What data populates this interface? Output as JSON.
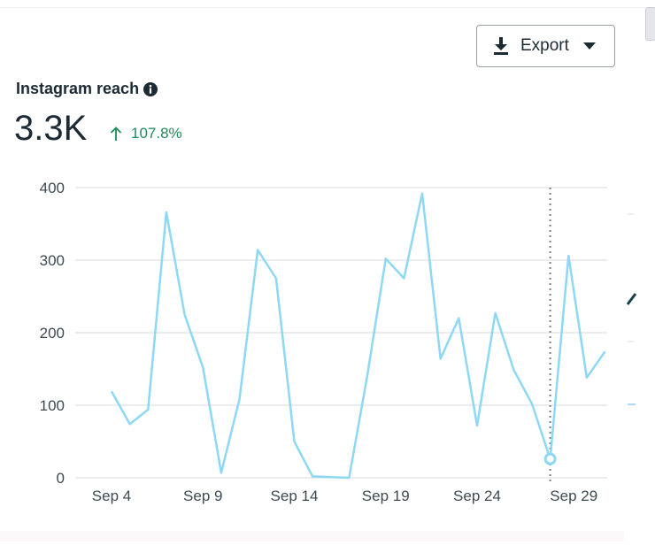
{
  "header": {
    "export_label": "Export",
    "export_icon": "download-icon",
    "dropdown_icon": "caret-down-icon"
  },
  "metric": {
    "title": "Instagram reach",
    "info_icon": "info-icon",
    "value": "3.3K",
    "change": "107.8%",
    "change_icon": "arrow-up-icon",
    "change_color": "#1f8a5b"
  },
  "chart_data": {
    "type": "line",
    "title": "Instagram reach",
    "xlabel": "",
    "ylabel": "",
    "x": [
      "Sep 4",
      "Sep 5",
      "Sep 6",
      "Sep 7",
      "Sep 8",
      "Sep 9",
      "Sep 10",
      "Sep 11",
      "Sep 12",
      "Sep 13",
      "Sep 14",
      "Sep 15",
      "Sep 16",
      "Sep 17",
      "Sep 18",
      "Sep 19",
      "Sep 20",
      "Sep 21",
      "Sep 22",
      "Sep 23",
      "Sep 24",
      "Sep 25",
      "Sep 26",
      "Sep 27",
      "Sep 28",
      "Sep 29",
      "Sep 30",
      "Oct 1"
    ],
    "series": [
      {
        "name": "Instagram reach",
        "color": "#8dd8f5",
        "values": [
          119,
          74,
          94,
          366,
          225,
          152,
          7,
          108,
          314,
          275,
          50,
          2,
          1,
          0,
          142,
          302,
          275,
          392,
          164,
          220,
          72,
          227,
          149,
          102,
          26,
          306,
          138,
          174
        ]
      }
    ],
    "xticks": [
      {
        "label": "Sep 4",
        "x": 0
      },
      {
        "label": "Sep 9",
        "x": 5
      },
      {
        "label": "Sep 14",
        "x": 10
      },
      {
        "label": "Sep 19",
        "x": 15
      },
      {
        "label": "Sep 24",
        "x": 20
      },
      {
        "label": "Sep 29",
        "x": 25
      }
    ],
    "yticks": [
      0,
      100,
      200,
      300,
      400
    ],
    "ylim": [
      0,
      400
    ],
    "grid": true,
    "highlight_index": 24,
    "highlight_color": "#7f7f7f"
  }
}
